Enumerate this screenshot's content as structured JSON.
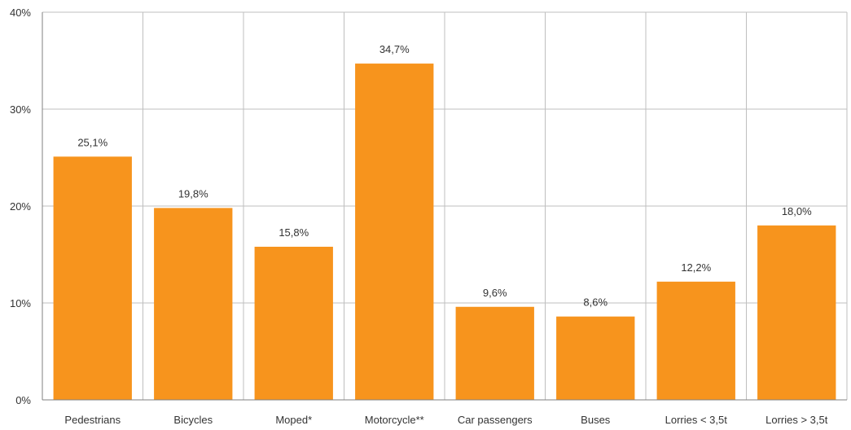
{
  "chart_data": {
    "type": "bar",
    "categories": [
      "Pedestrians",
      "Bicycles",
      "Moped*",
      "Motorcycle**",
      "Car passengers",
      "Buses",
      "Lorries < 3,5t",
      "Lorries > 3,5t"
    ],
    "values": [
      25.1,
      19.8,
      15.8,
      34.7,
      9.6,
      8.6,
      12.2,
      18.0
    ],
    "data_labels": [
      "25,1%",
      "19,8%",
      "15,8%",
      "34,7%",
      "9,6%",
      "8,6%",
      "12,2%",
      "18,0%"
    ],
    "y_ticks": [
      0,
      10,
      20,
      30,
      40
    ],
    "y_tick_labels": [
      "0%",
      "10%",
      "20%",
      "30%",
      "40%"
    ],
    "ylim": [
      0,
      40
    ],
    "title": "",
    "xlabel": "",
    "ylabel": "",
    "grid": true,
    "legend": "none",
    "bar_color": "#F7941D",
    "grid_color": "#BFBFBF",
    "axis_color": "#808080"
  }
}
